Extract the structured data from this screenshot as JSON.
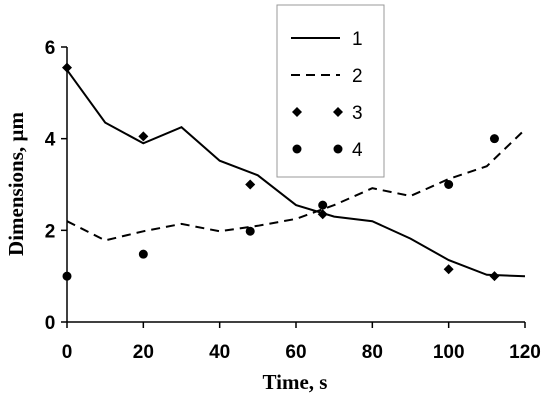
{
  "chart_data": {
    "type": "line",
    "xlabel": "Time, s",
    "ylabel": "Dimensions, µm",
    "xlim": [
      0,
      120
    ],
    "ylim": [
      0,
      6
    ],
    "x_ticks": [
      "0",
      "20",
      "40",
      "60",
      "80",
      "100",
      "120"
    ],
    "y_ticks": [
      "0",
      "2",
      "4",
      "6"
    ],
    "grid": false,
    "legend_position": "top",
    "series": [
      {
        "name": "1",
        "style": "solid-line",
        "x": [
          0,
          10,
          20,
          30,
          40,
          50,
          60,
          70,
          80,
          90,
          100,
          110,
          120
        ],
        "y": [
          5.5,
          4.35,
          3.9,
          4.25,
          3.52,
          3.2,
          2.55,
          2.3,
          2.2,
          1.82,
          1.35,
          1.03,
          1.0
        ]
      },
      {
        "name": "2",
        "style": "dashed-line",
        "x": [
          0,
          10,
          20,
          30,
          40,
          50,
          60,
          70,
          80,
          90,
          100,
          110,
          120
        ],
        "y": [
          2.2,
          1.78,
          1.98,
          2.14,
          1.98,
          2.1,
          2.25,
          2.55,
          2.92,
          2.75,
          3.12,
          3.4,
          4.2
        ]
      },
      {
        "name": "3",
        "style": "diamond-markers",
        "x": [
          0,
          20,
          48,
          67,
          100,
          112
        ],
        "y": [
          5.55,
          4.05,
          3.0,
          2.35,
          1.15,
          1.0
        ]
      },
      {
        "name": "4",
        "style": "circle-markers",
        "x": [
          0,
          20,
          48,
          67,
          100,
          112
        ],
        "y": [
          1.0,
          1.48,
          1.98,
          2.55,
          3.0,
          4.0
        ]
      }
    ]
  }
}
